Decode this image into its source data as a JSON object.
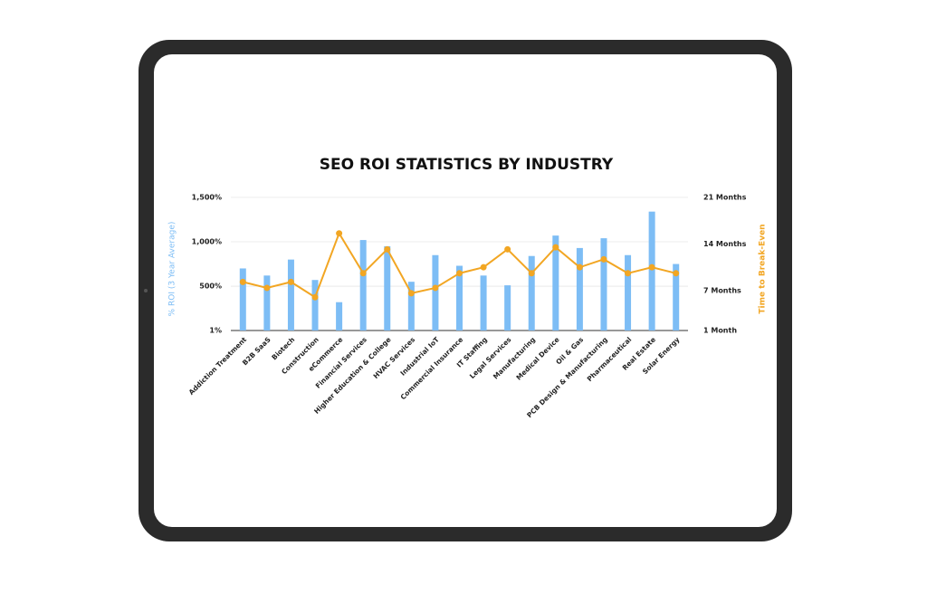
{
  "chart_data": {
    "type": "bar",
    "title": "SEO ROI STATISTICS BY INDUSTRY",
    "y_label": "% ROI (3 Year Average)",
    "y2_label": "Time to Break-Even",
    "categories": [
      "Addiction Treatment",
      "B2B SaaS",
      "Biotech",
      "Construction",
      "eCommerce",
      "Financial Services",
      "Higher Education & College",
      "HVAC Services",
      "Industrial IoT",
      "Commercial Insurance",
      "IT Staffing",
      "Legal Services",
      "Manufacturing",
      "Medical Device",
      "Oil & Gas",
      "PCB Design & Manufacturing",
      "Pharmaceutical",
      "Real Estate",
      "Solar Energy"
    ],
    "series": [
      {
        "type": "bar",
        "color": "#7dbdf5",
        "values": [
          700,
          620,
          800,
          570,
          320,
          1020,
          950,
          550,
          850,
          730,
          620,
          510,
          840,
          1070,
          930,
          1040,
          850,
          1340,
          750
        ]
      },
      {
        "type": "line",
        "axis": "y2",
        "color": "#f2a623",
        "values": [
          8.3,
          7.4,
          8.3,
          6.0,
          15.6,
          9.6,
          13.2,
          6.6,
          7.4,
          9.6,
          10.5,
          13.2,
          9.6,
          13.5,
          10.5,
          11.7,
          9.6,
          10.5,
          9.6
        ]
      }
    ],
    "ylim": [
      1,
      1500
    ],
    "yticks": [
      {
        "value": 1,
        "label": "1%"
      },
      {
        "value": 500,
        "label": "500%"
      },
      {
        "value": 1000,
        "label": "1,000%"
      },
      {
        "value": 1500,
        "label": "1,500%"
      }
    ],
    "y2lim": [
      1,
      21
    ],
    "y2ticks": [
      {
        "value": 1,
        "label": "1 Month"
      },
      {
        "value": 7,
        "label": "7 Months"
      },
      {
        "value": 14,
        "label": "14 Months"
      },
      {
        "value": 21,
        "label": "21 Months"
      }
    ],
    "grid": true
  }
}
